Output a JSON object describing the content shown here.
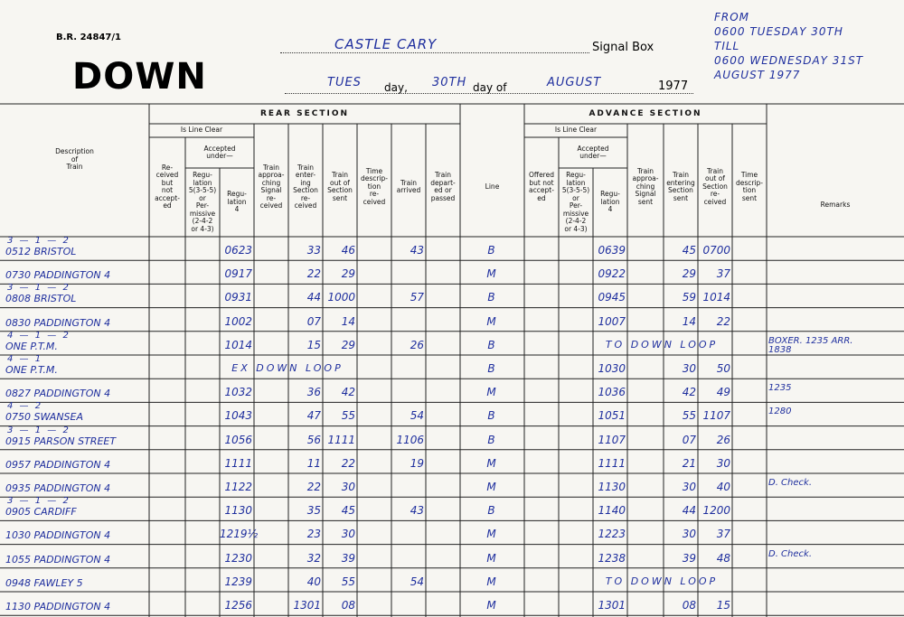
{
  "form_number": "B.R. 24847/1",
  "direction": "DOWN",
  "signal_box_name": "CASTLE CARY",
  "signal_box_label": "Signal Box",
  "day_name": "TUES",
  "day_label": "day,",
  "day_number": "30TH",
  "month_label": "day of",
  "month": "AUGUST",
  "year": "1977",
  "period": [
    "FROM",
    "0600 TUESDAY 30TH",
    "TILL",
    "0600 WEDNESDAY 31ST",
    "AUGUST 1977"
  ],
  "description_header": "Description\nof\nTrain",
  "line_header": "Line",
  "remarks_header": "Remarks",
  "rear": {
    "title": "REAR SECTION",
    "is_line_clear": "Is Line Clear",
    "accepted_under": "Accepted\nunder—",
    "columns": [
      "Re-\nceived\nbut\nnot\naccept-\ned",
      "Regu-\nlation\n5(3-5-5)\nor\nPer-\nmissive\n(2-4-2\nor 4-3)",
      "Regu-\nlation\n4",
      "Train\napproa-\nching\nSignal\nre-\nceived",
      "Train\nenter-\ning\nSection\nre-\nceived",
      "Train\nout of\nSection\nsent",
      "Time\ndescrip-\ntion\nre-\nceived",
      "Train\narrived",
      "Train\ndepart-\ned or\npassed"
    ]
  },
  "advance": {
    "title": "ADVANCE SECTION",
    "is_line_clear": "Is Line Clear",
    "accepted_under": "Accepted\nunder—",
    "columns": [
      "Offered\nbut not\naccept-\ned",
      "Regu-\nlation\n5(3-5-5)\nor\nPer-\nmissive\n(2-4-2\nor 4-3)",
      "Regu-\nlation\n4",
      "Train\napproa-\nching\nSignal\nsent",
      "Train\nentering\nSection\nsent",
      "Train\nout of\nSection\nre-\nceived",
      "Time\ndescrip-\ntion\nsent"
    ]
  },
  "rows": [
    {
      "bell": "3 — 1 — 2",
      "train": "0512 BRISTOL",
      "rear_reg4": "0623",
      "rear_enter": "33",
      "rear_out": "46",
      "arrived": "43",
      "line": "B",
      "adv_reg4": "0639",
      "adv_enter": "45",
      "adv_out": "0700"
    },
    {
      "train": "0730 PADDINGTON 4",
      "rear_reg4": "0917",
      "rear_enter": "22",
      "rear_out": "29",
      "line": "M",
      "adv_reg4": "0922",
      "adv_enter": "29",
      "adv_out": "37"
    },
    {
      "bell": "3 — 1 — 2",
      "train": "0808 BRISTOL",
      "rear_reg4": "0931",
      "rear_enter": "44",
      "rear_out": "1000",
      "arrived": "57",
      "line": "B",
      "adv_reg4": "0945",
      "adv_enter": "59",
      "adv_out": "1014"
    },
    {
      "train": "0830 PADDINGTON 4",
      "rear_reg4": "1002",
      "rear_enter": "07",
      "rear_out": "14",
      "line": "M",
      "adv_reg4": "1007",
      "adv_enter": "14",
      "adv_out": "22"
    },
    {
      "bell": "4 — 1 — 2",
      "train": "ONE P.T.M.",
      "rear_reg4": "1014",
      "rear_enter": "15",
      "rear_out": "29",
      "arrived": "26",
      "line": "B",
      "adv_note": "TO DOWN LOOP",
      "remarks": "BOXER. 1235 ARR.\n1838"
    },
    {
      "bell": "4 — 1",
      "train": "ONE P.T.M.",
      "rear_note": "EX DOWN LOOP",
      "line": "B",
      "adv_reg4": "1030",
      "adv_enter": "30",
      "adv_out": "50"
    },
    {
      "train": "0827 PADDINGTON 4",
      "rear_reg4": "1032",
      "rear_enter": "36",
      "rear_out": "42",
      "line": "M",
      "adv_reg4": "1036",
      "adv_enter": "42",
      "adv_out": "49",
      "remarks": "1235"
    },
    {
      "bell": "4 — 2",
      "train": "0750 SWANSEA",
      "rear_reg4": "1043",
      "rear_enter": "47",
      "rear_out": "55",
      "arrived": "54",
      "line": "B",
      "adv_reg4": "1051",
      "adv_enter": "55",
      "adv_out": "1107",
      "remarks": "1280"
    },
    {
      "bell": "3 — 1 — 2",
      "train": "0915 PARSON STREET",
      "rear_reg4": "1056",
      "rear_enter": "56",
      "rear_out": "1111",
      "arrived": "1106",
      "line": "B",
      "adv_reg4": "1107",
      "adv_enter": "07",
      "adv_out": "26"
    },
    {
      "train": "0957 PADDINGTON 4",
      "rear_reg4": "1111",
      "rear_enter": "11",
      "rear_out": "22",
      "arrived": "19",
      "line": "M",
      "adv_reg4": "1111",
      "adv_enter": "21",
      "adv_out": "30"
    },
    {
      "train": "0935 PADDINGTON 4",
      "rear_reg4": "1122",
      "rear_enter": "22",
      "rear_out": "30",
      "line": "M",
      "adv_reg4": "1130",
      "adv_enter": "30",
      "adv_out": "40",
      "remarks": "D. Check."
    },
    {
      "bell": "3 — 1 — 2",
      "train": "0905 CARDIFF",
      "rear_reg4": "1130",
      "rear_enter": "35",
      "rear_out": "45",
      "arrived": "43",
      "line": "B",
      "adv_reg4": "1140",
      "adv_enter": "44",
      "adv_out": "1200"
    },
    {
      "train": "1030 PADDINGTON 4",
      "rear_reg4": "1219½",
      "rear_enter": "23",
      "rear_out": "30",
      "line": "M",
      "adv_reg4": "1223",
      "adv_enter": "30",
      "adv_out": "37"
    },
    {
      "train": "1055 PADDINGTON 4",
      "rear_reg4": "1230",
      "rear_enter": "32",
      "rear_out": "39",
      "line": "M",
      "adv_reg4": "1238",
      "adv_enter": "39",
      "adv_out": "48",
      "remarks": "D. Check."
    },
    {
      "train": "0948 FAWLEY 5",
      "rear_reg4": "1239",
      "rear_enter": "40",
      "rear_out": "55",
      "arrived": "54",
      "line": "M",
      "adv_note": "TO DOWN LOOP"
    },
    {
      "train": "1130 PADDINGTON 4",
      "rear_reg4": "1256",
      "rear_enter": "1301",
      "rear_out": "08",
      "line": "M",
      "adv_reg4": "1301",
      "adv_enter": "08",
      "adv_out": "15"
    }
  ]
}
